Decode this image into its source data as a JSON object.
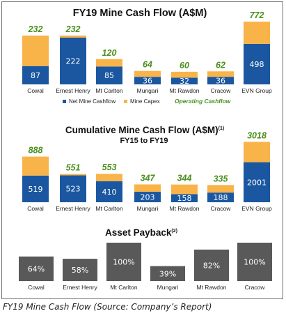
{
  "colors": {
    "net_cashflow": "#1b57a0",
    "capex": "#f8b449",
    "payback": "#595959",
    "operating": "#4a8f1e"
  },
  "chart_data": [
    {
      "type": "bar",
      "stacked": true,
      "title": "FY19 Mine Cash Flow (A$M)",
      "categories": [
        "Cowal",
        "Ernest Henry",
        "Mt Carlton",
        "Mungari",
        "Mt Rawdon",
        "Cracow",
        "EVN Group"
      ],
      "series": [
        {
          "name": "Net Mine Cashflow",
          "values": [
            87,
            222,
            85,
            36,
            32,
            36,
            498
          ]
        },
        {
          "name": "Mine Capex",
          "values": [
            145,
            10,
            35,
            28,
            28,
            26,
            274
          ]
        }
      ],
      "totals": [
        232,
        232,
        120,
        64,
        60,
        62,
        772
      ],
      "totals_label": "Operating Cashflow",
      "legend": [
        "Net Mine Cashflow",
        "Mine Capex",
        "Operating Cashflow"
      ],
      "legend_position": "bottom",
      "grid": false
    },
    {
      "type": "bar",
      "stacked": true,
      "title": "Cumulative Mine Cash Flow (A$M)",
      "title_superscript": "(1)",
      "subtitle": "FY15 to FY19",
      "categories": [
        "Cowal",
        "Ernest Henry",
        "Mt Carlton",
        "Mungari",
        "Mt Rawdon",
        "Cracow",
        "EVN Group"
      ],
      "series": [
        {
          "name": "Net Mine Cashflow",
          "values": [
            519,
            523,
            410,
            203,
            158,
            188,
            2001
          ]
        },
        {
          "name": "Mine Capex",
          "values": [
            369,
            28,
            143,
            144,
            186,
            147,
            1017
          ]
        }
      ],
      "totals": [
        888,
        551,
        553,
        347,
        344,
        335,
        3018
      ],
      "grid": false
    },
    {
      "type": "bar",
      "title": "Asset Payback",
      "title_superscript": "(2)",
      "categories": [
        "Cowal",
        "Ernest Henry",
        "Mt Carlton",
        "Mungari",
        "Mt Rawdon",
        "Cracow"
      ],
      "values": [
        64,
        58,
        100,
        39,
        82,
        100
      ],
      "value_labels": [
        "64%",
        "58%",
        "100%",
        "39%",
        "82%",
        "100%"
      ],
      "grid": false
    }
  ],
  "caption": "FY19 Mine Cash Flow (Source: Company’s Report)"
}
